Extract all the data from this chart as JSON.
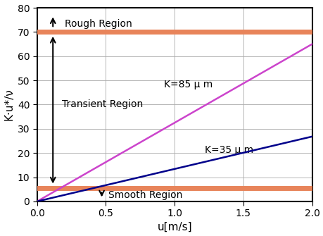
{
  "xlim": [
    0,
    2
  ],
  "ylim": [
    0,
    80
  ],
  "xlabel": "u[m/s]",
  "ylabel": "K·u*/ν",
  "xticks": [
    0,
    0.5,
    1,
    1.5,
    2
  ],
  "yticks": [
    0,
    10,
    20,
    30,
    40,
    50,
    60,
    70,
    80
  ],
  "hline_smooth": 5.5,
  "hline_rough": 70,
  "hline_color": "#E8845A",
  "hline_lw": 5,
  "line_k85_slope": 32.5,
  "line_k35_slope": 13.4,
  "line_k85_intercept": 0.0,
  "line_k35_intercept": 0.0,
  "line_k85_color": "#CC44CC",
  "line_k35_color": "#00008B",
  "line_lw": 1.8,
  "label_k85": "K=85 μ m",
  "label_k35": "K=35 μ m",
  "label_rough": "Rough Region",
  "label_transient": "Transient Region",
  "label_smooth": "Smooth Region",
  "bg_color": "#ffffff",
  "grid_color": "#aaaaaa",
  "tick_label_fontsize": 10,
  "axis_label_fontsize": 11,
  "region_label_fontsize": 10,
  "curve_label_fontsize": 10
}
